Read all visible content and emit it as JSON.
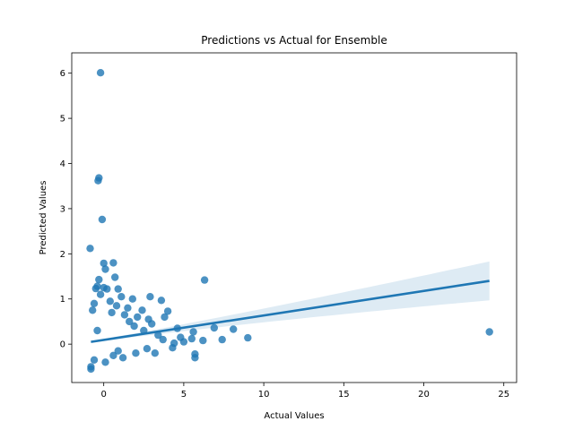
{
  "chart_data": {
    "type": "scatter",
    "title": "Predictions vs Actual for Ensemble",
    "xlabel": "Actual Values",
    "ylabel": "Predicted Values",
    "xlim": [
      -2.0,
      25.8
    ],
    "ylim": [
      -0.85,
      6.45
    ],
    "xticks": [
      0,
      5,
      10,
      15,
      20,
      25
    ],
    "yticks": [
      0,
      1,
      2,
      3,
      4,
      5,
      6
    ],
    "grid": false,
    "legend": "none",
    "colors": {
      "points": "#1f77b4",
      "line": "#1f77b4",
      "band": "#1f77b4"
    },
    "regression": {
      "x": [
        -0.8,
        24.1
      ],
      "y": [
        0.05,
        1.4
      ],
      "ci_upper": [
        0.07,
        1.85
      ],
      "ci_lower": [
        0.03,
        0.97
      ]
    },
    "points": [
      [
        -0.2,
        6.01
      ],
      [
        -0.3,
        3.68
      ],
      [
        -0.35,
        3.62
      ],
      [
        -0.1,
        2.76
      ],
      [
        -0.85,
        2.12
      ],
      [
        0.0,
        1.79
      ],
      [
        0.6,
        1.8
      ],
      [
        0.1,
        1.66
      ],
      [
        0.7,
        1.48
      ],
      [
        -0.3,
        1.43
      ],
      [
        -0.5,
        1.23
      ],
      [
        -0.4,
        1.28
      ],
      [
        0.0,
        1.25
      ],
      [
        0.2,
        1.22
      ],
      [
        0.9,
        1.22
      ],
      [
        1.1,
        1.05
      ],
      [
        1.8,
        1.0
      ],
      [
        2.9,
        1.05
      ],
      [
        3.6,
        0.97
      ],
      [
        4.0,
        0.73
      ],
      [
        3.8,
        0.6
      ],
      [
        4.6,
        0.35
      ],
      [
        2.8,
        0.55
      ],
      [
        1.5,
        0.8
      ],
      [
        2.4,
        0.75
      ],
      [
        6.3,
        1.42
      ],
      [
        5.6,
        0.27
      ],
      [
        6.9,
        0.36
      ],
      [
        8.1,
        0.33
      ],
      [
        9.0,
        0.14
      ],
      [
        7.4,
        0.1
      ],
      [
        6.2,
        0.08
      ],
      [
        5.5,
        0.12
      ],
      [
        5.0,
        0.05
      ],
      [
        4.4,
        0.02
      ],
      [
        4.3,
        -0.08
      ],
      [
        5.7,
        -0.22
      ],
      [
        5.7,
        -0.3
      ],
      [
        24.1,
        0.27
      ],
      [
        3.2,
        -0.2
      ],
      [
        2.0,
        -0.2
      ],
      [
        1.2,
        -0.3
      ],
      [
        -0.8,
        -0.5
      ],
      [
        -0.8,
        -0.55
      ],
      [
        -0.7,
        0.75
      ],
      [
        -0.6,
        0.9
      ],
      [
        -0.2,
        1.1
      ],
      [
        0.4,
        0.95
      ],
      [
        0.8,
        0.85
      ],
      [
        1.9,
        0.4
      ],
      [
        2.5,
        0.3
      ],
      [
        3.4,
        0.2
      ],
      [
        3.0,
        0.45
      ],
      [
        2.1,
        0.6
      ],
      [
        1.6,
        0.5
      ],
      [
        1.3,
        0.65
      ],
      [
        0.5,
        0.7
      ],
      [
        -0.4,
        0.3
      ],
      [
        -0.6,
        -0.35
      ],
      [
        0.1,
        -0.4
      ],
      [
        0.6,
        -0.25
      ],
      [
        0.9,
        -0.15
      ],
      [
        3.7,
        0.1
      ],
      [
        4.8,
        0.15
      ],
      [
        2.7,
        -0.1
      ]
    ]
  }
}
